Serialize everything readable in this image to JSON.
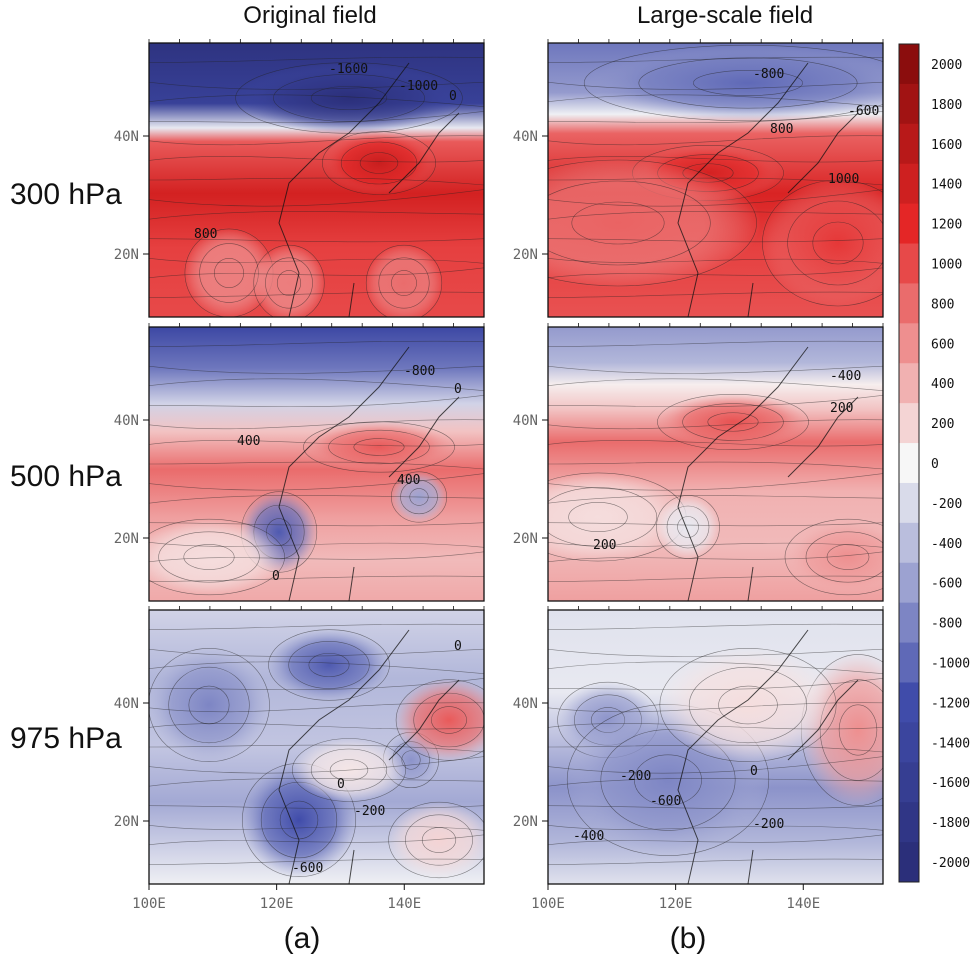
{
  "chart_data": {
    "type": "heatmap",
    "columns": [
      "Original field",
      "Large-scale field"
    ],
    "rows": [
      "300 hPa",
      "500 hPa",
      "975 hPa"
    ],
    "panel_labels": [
      "(a)",
      "(b)"
    ],
    "x_ticks": [
      "100E",
      "120E",
      "140E"
    ],
    "y_ticks": [
      "40N",
      "20N"
    ],
    "colorbar": {
      "ticks": [
        2000,
        1800,
        1600,
        1400,
        1200,
        1000,
        800,
        600,
        400,
        200,
        0,
        -200,
        -400,
        -600,
        -800,
        -1000,
        -1200,
        -1400,
        -1600,
        -1800,
        -2000
      ],
      "range": [
        -2000,
        2000
      ],
      "low_color": "#2b2f7a",
      "mid_color": "#f7f7f7",
      "high_color": "#8b0d0d"
    },
    "contour_labels": {
      "p300_orig": [
        "-1600",
        "-1000",
        "0",
        "800"
      ],
      "p300_ls": [
        "-800",
        "-600",
        "800",
        "1000"
      ],
      "p500_orig": [
        "-800",
        "0",
        "400",
        "400",
        "0"
      ],
      "p500_ls": [
        "-400",
        "200",
        "200"
      ],
      "p975_orig": [
        "0",
        "0",
        "-200",
        "-600"
      ],
      "p975_ls": [
        "-200",
        "0",
        "-600",
        "-200",
        "-400"
      ]
    }
  }
}
